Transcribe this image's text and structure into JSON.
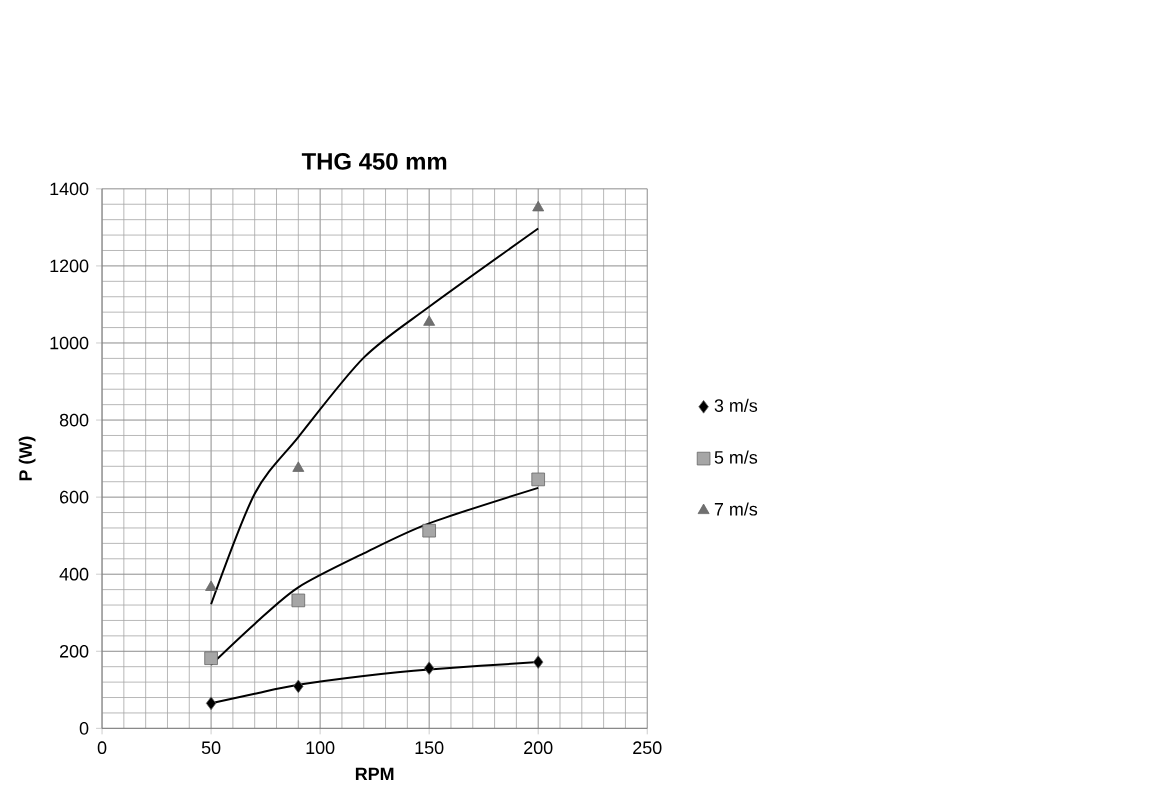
{
  "chart_data": {
    "type": "scatter",
    "title": "THG 450 mm",
    "xlabel": "RPM",
    "ylabel": "P (W)",
    "xlim": [
      0,
      250
    ],
    "xticks": [
      0,
      50,
      100,
      150,
      200,
      250
    ],
    "ylim": [
      0,
      1400
    ],
    "yticks": [
      0,
      200,
      400,
      600,
      800,
      1000,
      1200,
      1400
    ],
    "grid": true,
    "legend": "right",
    "series": [
      {
        "name": "3 m/s",
        "color": "#000000",
        "marker": "diamond",
        "x": [
          50,
          90,
          150,
          200
        ],
        "values": [
          65,
          109,
          156,
          172
        ]
      },
      {
        "name": "5 m/s",
        "color": "#a6a6a6",
        "marker": "square",
        "x": [
          50,
          90,
          150,
          200
        ],
        "values": [
          182,
          332,
          513,
          646
        ]
      },
      {
        "name": "7 m/s",
        "color": "#707070",
        "marker": "triangle",
        "x": [
          50,
          90,
          150,
          200
        ],
        "values": [
          366,
          675,
          1054,
          1351
        ]
      },
      {
        "type": "line",
        "color": "#000000",
        "marker": "none",
        "x": [
          50,
          70,
          90,
          120,
          150,
          200
        ],
        "values": [
          65,
          90,
          113,
          136,
          153,
          172
        ]
      },
      {
        "type": "line",
        "color": "#000000",
        "marker": "none",
        "x": [
          50,
          70,
          90,
          120,
          150,
          200
        ],
        "values": [
          165,
          271,
          366,
          454,
          532,
          624
        ]
      },
      {
        "type": "line",
        "color": "#000000",
        "marker": "none",
        "x": [
          50,
          70,
          90,
          120,
          150,
          200
        ],
        "values": [
          322,
          609,
          756,
          962,
          1094,
          1297
        ]
      }
    ]
  }
}
